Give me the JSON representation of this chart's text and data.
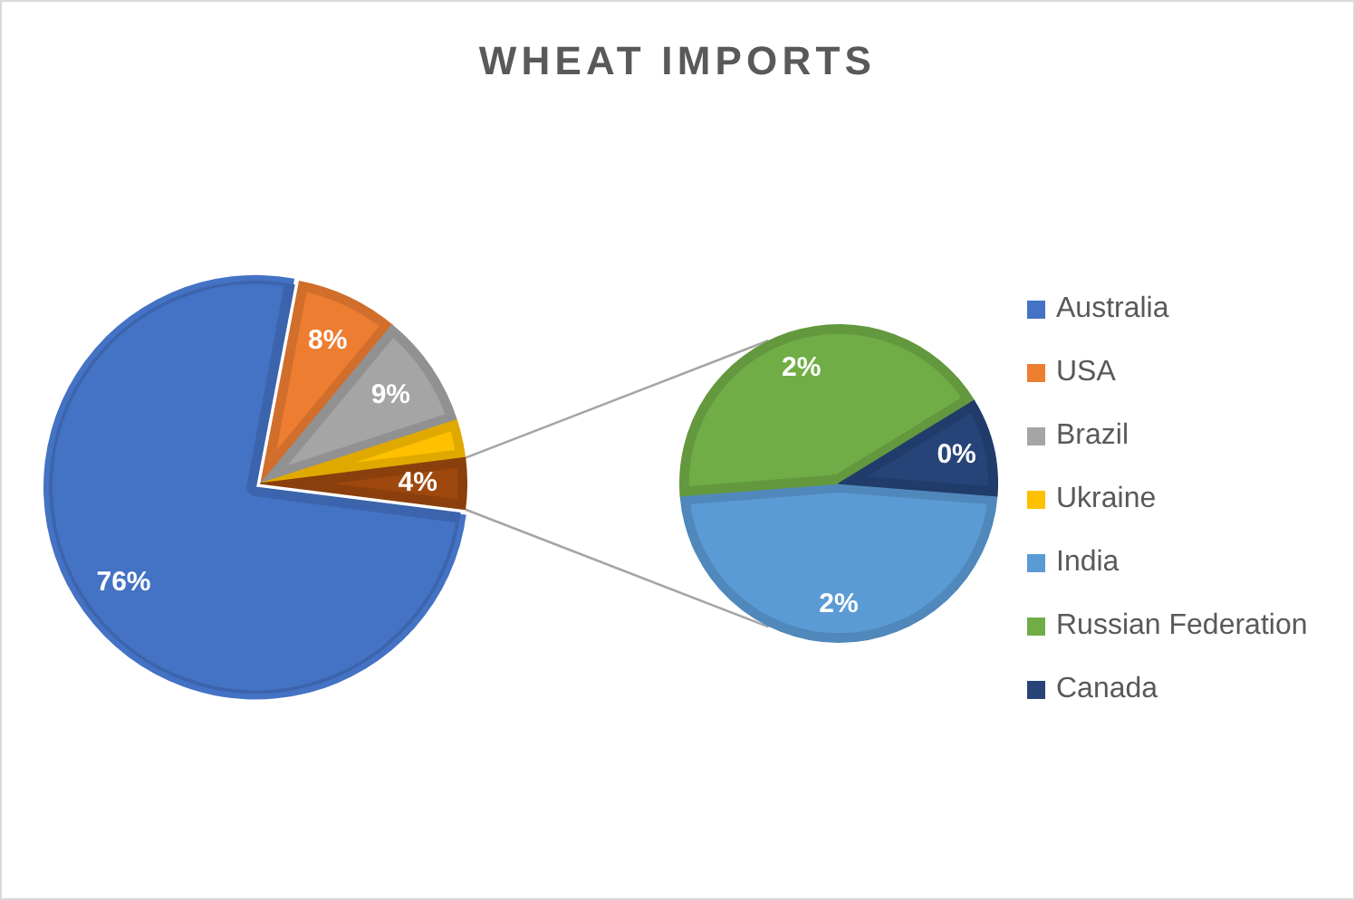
{
  "chart_data": [
    {
      "type": "pie",
      "title": "WHEAT IMPORTS",
      "categories": [
        "Australia",
        "USA",
        "Brazil",
        "Ukraine",
        null
      ],
      "values": [
        76,
        8,
        9,
        3,
        4
      ],
      "colors": [
        "#4472c4",
        "#ed7d31",
        "#a5a5a5",
        "#ffc000",
        "#9e480e"
      ],
      "value_labels": [
        "76%",
        "8%",
        "9%",
        null,
        "4%"
      ],
      "legend": "right"
    },
    {
      "type": "pie",
      "categories": [
        "India",
        "Russian Federation",
        "Canada"
      ],
      "values": [
        1.9,
        1.7,
        0.4
      ],
      "colors": [
        "#5b9bd5",
        "#70ad47",
        "#264478"
      ],
      "value_labels": [
        "2%",
        "2%",
        "0%"
      ],
      "legend": "right"
    }
  ]
}
